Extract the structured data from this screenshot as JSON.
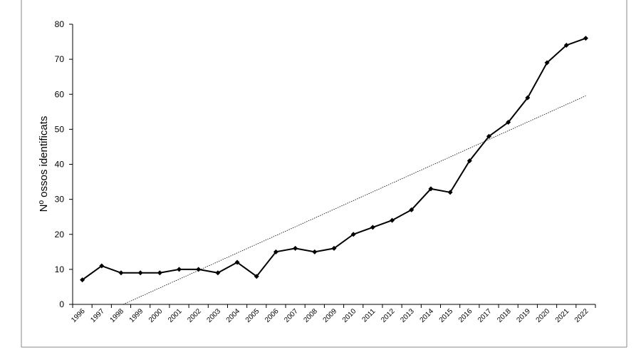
{
  "chart_data": {
    "type": "line",
    "ylabel": "Nº ossos identificats",
    "categories": [
      "1996",
      "1997",
      "1998",
      "1999",
      "2000",
      "2001",
      "2002",
      "2003",
      "2004",
      "2005",
      "2006",
      "2007",
      "2008",
      "2009",
      "2010",
      "2011",
      "2012",
      "2013",
      "2014",
      "2015",
      "2016",
      "2017",
      "2018",
      "2019",
      "2020",
      "2021",
      "2022"
    ],
    "values": [
      7,
      11,
      9,
      9,
      9,
      10,
      10,
      9,
      12,
      8,
      15,
      16,
      15,
      16,
      20,
      22,
      24,
      27,
      33,
      32,
      41,
      48,
      52,
      59,
      69,
      74,
      76
    ],
    "color": "#000000",
    "trendline": "linear",
    "ylim": [
      0,
      80
    ],
    "yticks": [
      0,
      10,
      20,
      30,
      40,
      50,
      60,
      70,
      80
    ],
    "grid": false
  }
}
